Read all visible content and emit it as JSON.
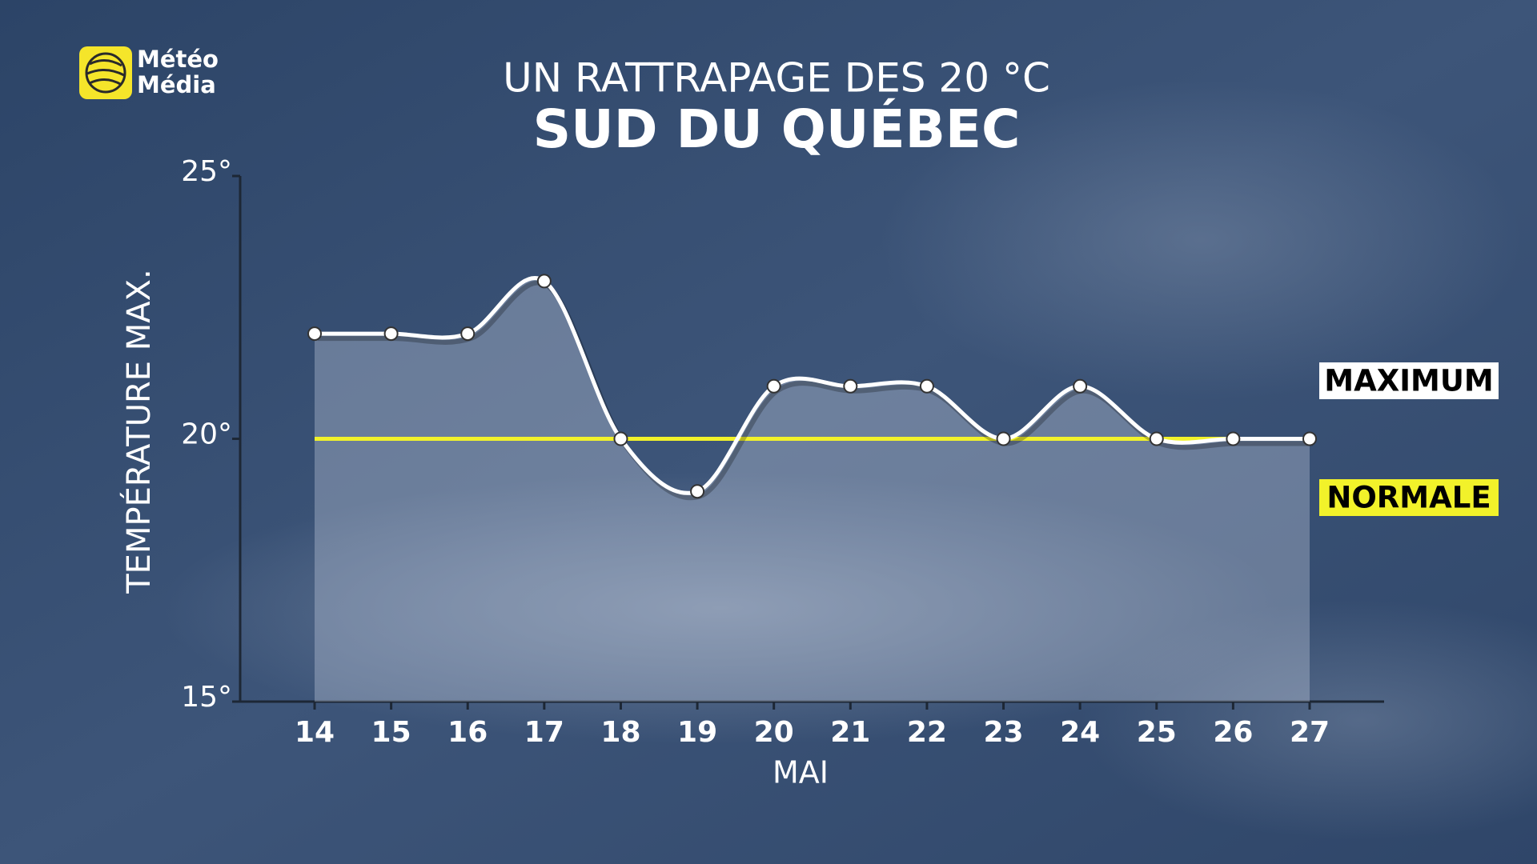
{
  "logo": {
    "line1": "Météo",
    "line2": "Média"
  },
  "chart_data": {
    "type": "line",
    "title": "UN RATTRAPAGE DES 20 °C",
    "subtitle": "SUD DU QUÉBEC",
    "x_label": "MAI",
    "y_label": "TEMPÉRATURE MAX.",
    "categories": [
      "14",
      "15",
      "16",
      "17",
      "18",
      "19",
      "20",
      "21",
      "22",
      "23",
      "24",
      "25",
      "26",
      "27"
    ],
    "series": [
      {
        "name": "MAXIMUM",
        "color": "#ffffff",
        "values": [
          22,
          22,
          22,
          23,
          20,
          19,
          21,
          21,
          21,
          20,
          21,
          20,
          20,
          20
        ]
      },
      {
        "name": "NORMALE",
        "color": "#f2f22a",
        "values": [
          20,
          20,
          20,
          20,
          20,
          20,
          20,
          20,
          20,
          20,
          20,
          20,
          20,
          20
        ]
      }
    ],
    "ylim": [
      15,
      25
    ],
    "yticks": [
      {
        "value": 15,
        "label": "15°"
      },
      {
        "value": 20,
        "label": "20°"
      },
      {
        "value": 25,
        "label": "25°"
      }
    ]
  }
}
